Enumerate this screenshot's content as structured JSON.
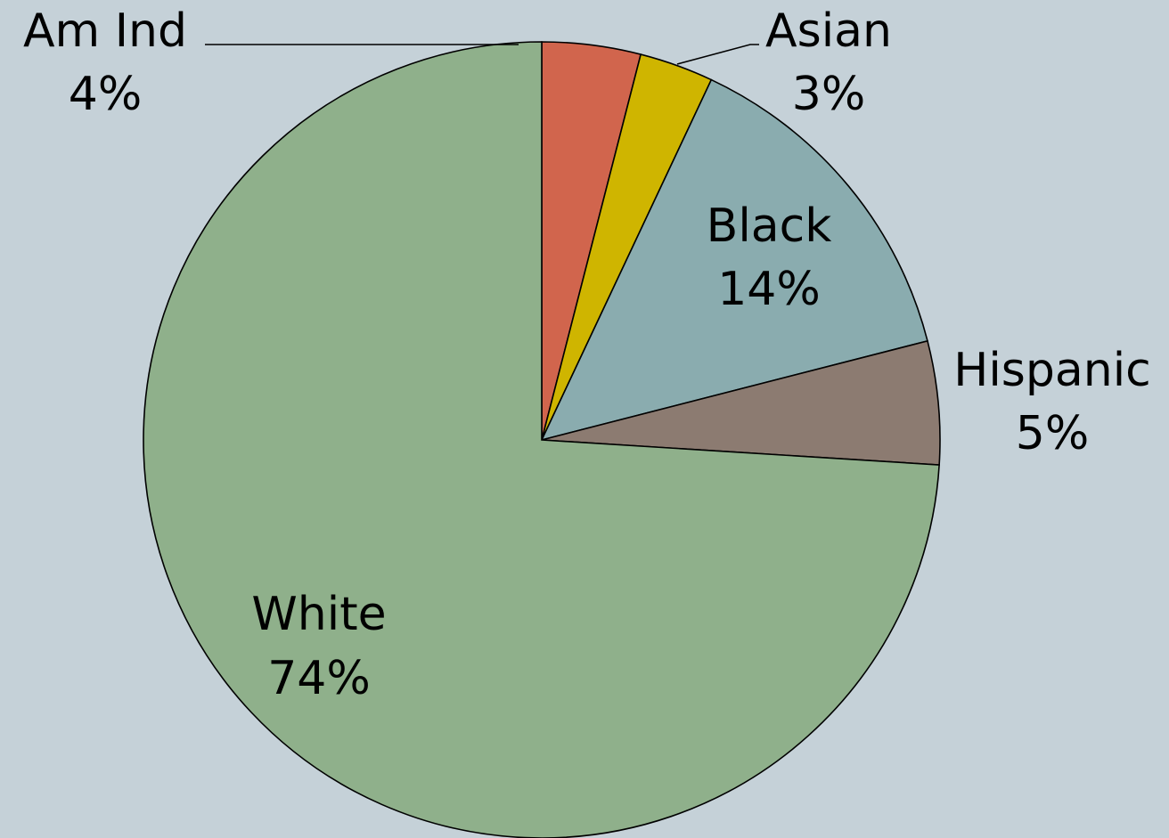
{
  "chart_data": {
    "type": "pie",
    "start_angle": "12 o'clock",
    "direction": "clockwise",
    "slices": [
      {
        "label": "Am Ind",
        "value": 4,
        "display": "4%",
        "color": "#d1654d"
      },
      {
        "label": "Asian",
        "value": 3,
        "display": "3%",
        "color": "#cfb500"
      },
      {
        "label": "Black",
        "value": 14,
        "display": "14%",
        "color": "#8aacaf"
      },
      {
        "label": "Hispanic",
        "value": 5,
        "display": "5%",
        "color": "#8c7b71"
      },
      {
        "label": "White",
        "value": 74,
        "display": "74%",
        "color": "#8fb08b"
      }
    ],
    "background_color": "#c5d1d8"
  }
}
